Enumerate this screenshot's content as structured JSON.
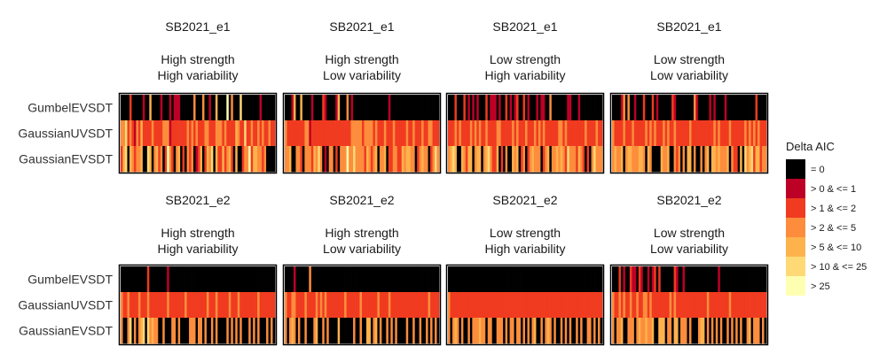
{
  "chart_data": {
    "type": "heatmap",
    "models": [
      "GumbelEVSDT",
      "GaussianUVSDT",
      "GaussianEVSDT"
    ],
    "legend": {
      "title": "Delta AIC",
      "placement": "right",
      "categories": [
        {
          "label": "= 0",
          "color": "#000000"
        },
        {
          "label": "> 0 & <= 1",
          "color": "#bd0026"
        },
        {
          "label": "> 1 & <= 2",
          "color": "#f03b20"
        },
        {
          "label": "> 2 & <= 5",
          "color": "#fd8d3c"
        },
        {
          "label": "> 5 & <= 10",
          "color": "#feb24c"
        },
        {
          "label": "> 10 & <= 25",
          "color": "#fed976"
        },
        {
          "label": "> 25",
          "color": "#ffffb2"
        }
      ]
    },
    "panels": [
      {
        "dataset": "SB2021_e1",
        "condition": [
          "High strength",
          "High variability"
        ],
        "cells": [
          "0000200000100400001000101110000003000300100400006030005000000001000000",
          "3352321324222232222333122222223232322233222333232222432252232232322322",
          "2450432334005403423026320340203230124024350422423420400233624433230000"
        ]
      },
      {
        "dataset": "SB2021_e1",
        "condition": [
          "High strength",
          "Low variability"
        ],
        "cells": [
          "0001400400001000021000014000301000000000000000010000000000000000000000",
          "3222222223312222222222222222223333323333232223222322222322322232233222",
          "3340033203332435301033020333633533332432340334022332243443302343302353"
        ]
      },
      {
        "dataset": "SB2021_e1",
        "condition": [
          "Low strength",
          "High variability"
        ],
        "cells": [
          "0002000201010100020111010020101200201000101100300000001100010000000000",
          "2223232222323232232222332222232322232223232322222233232222222232222322",
          "3454004324403440345322402030043402302343330234033434325333243202035333"
        ]
      },
      {
        "dataset": "SB2021_e1",
        "condition": [
          "Low strength",
          "Low variability"
        ],
        "cells": [
          "0000130300100020002010000002100000000310000010100001000000000000020000",
          "3222232223222223232322232322322222232222222222323222232222223232323222",
          "3433403443334430430000433400323030440300303404434333403220405345244233"
        ]
      },
      {
        "dataset": "SB2021_e2",
        "condition": [
          "High strength",
          "High variability"
        ],
        "cells": [
          "0000000000002000000001000000000000000000000000000000000000000000000000",
          "3223222232223222222223222222232222222223222322222322232222222232222222",
          "3003503034505343300300033030000333033030030300003030303000303030003030"
        ]
      },
      {
        "dataset": "SB2021_e2",
        "condition": [
          "High strength",
          "Low variability"
        ],
        "cells": [
          "0000100000030000000000000000000000000000000000000000000000000000000000",
          "3223322223222232323222222223222222322222223222232222222222222222232222",
          "3034303003000340030300004000000300300440340300303030000300300300303030"
        ]
      },
      {
        "dataset": "SB2021_e2",
        "condition": [
          "Low strength",
          "High variability"
        ],
        "cells": [
          "0000000000000000000000000000000000000000000000000000000000000000000000",
          "3222222222222222222222222222222222222222222222222222222222222222222222",
          "3034303003033343303300333030330330303034003034303003030300303003303030"
        ]
      },
      {
        "dataset": "SB2021_e2",
        "condition": [
          "Low strength",
          "Low variability"
        ],
        "cells": [
          "0002010021102100101202000000210010000000000000001000000000000000000000",
          "3223232232232233232222222232322222222222222322222222232222222222222222",
          "3033400333034334334004440330440333030003440303030300303030300340333030"
        ]
      }
    ]
  }
}
